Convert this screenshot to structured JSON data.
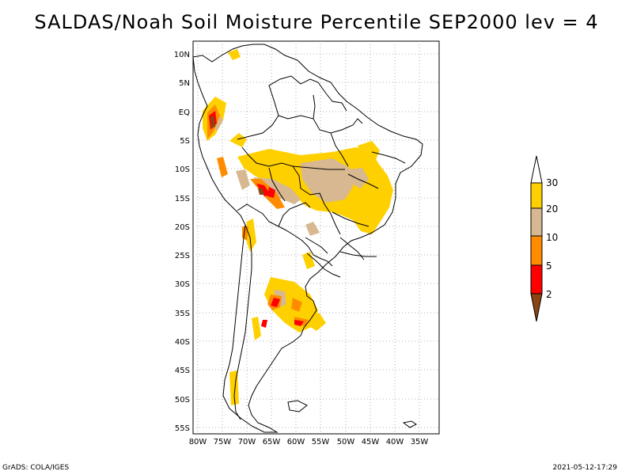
{
  "title": "SALDAS/Noah Soil Moisture Percentile SEP2000 lev = 4",
  "map": {
    "lon_range": [
      -81,
      -31
    ],
    "lat_range": [
      -56,
      12
    ],
    "lon_ticks": [
      "80W",
      "75W",
      "70W",
      "65W",
      "60W",
      "55W",
      "50W",
      "45W",
      "40W",
      "35W"
    ],
    "lat_ticks": [
      "10N",
      "5N",
      "EQ",
      "5S",
      "10S",
      "15S",
      "20S",
      "25S",
      "30S",
      "35S",
      "40S",
      "45S",
      "50S",
      "55S"
    ],
    "grid": "dotted"
  },
  "colorbar": {
    "labels": [
      "30",
      "20",
      "10",
      "5",
      "2"
    ],
    "colors": {
      "above_30": "#ffffff",
      "20_30": "#ffd000",
      "10_20": "#d7b890",
      "5_10": "#ff8c00",
      "2_5": "#ff0000",
      "below_2": "#8b4513"
    }
  },
  "footer": {
    "left": "GrADS: COLA/IGES",
    "right": "2021-05-12-17:29"
  }
}
